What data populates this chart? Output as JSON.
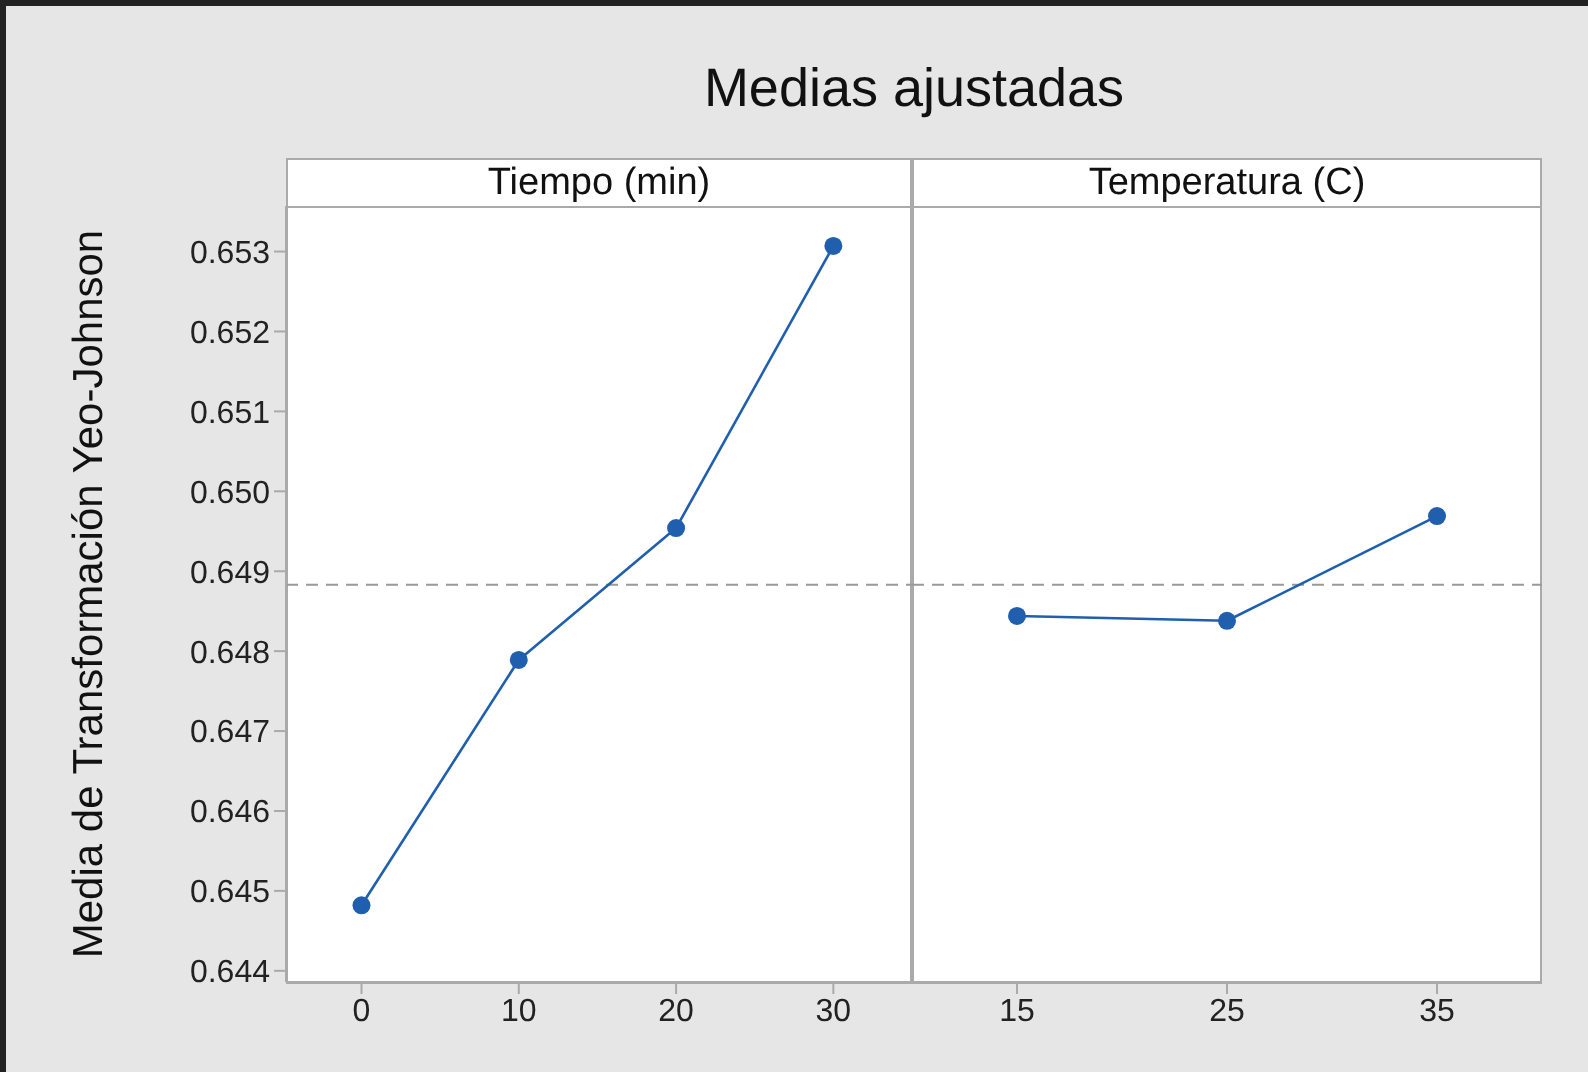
{
  "chart_data": [
    {
      "type": "line",
      "title": "Medias ajustadas",
      "subtitle": "Tiempo (min)",
      "ylabel": "Media de Transformación Yeo-Johnson",
      "x": [
        0,
        10,
        20,
        30
      ],
      "series": [
        {
          "color": "#1f5fae",
          "values": [
            0.64482,
            0.64789,
            0.64954,
            0.65307
          ]
        }
      ],
      "xlim": [
        -4.8,
        35
      ],
      "xticks": [
        0,
        10,
        20,
        30
      ],
      "ylim": [
        0.64386,
        0.65357
      ],
      "yticks": [
        {
          "value": 0.644,
          "label": "0.644"
        },
        {
          "value": 0.645,
          "label": "0.645"
        },
        {
          "value": 0.646,
          "label": "0.646"
        },
        {
          "value": 0.647,
          "label": "0.647"
        },
        {
          "value": 0.648,
          "label": "0.648"
        },
        {
          "value": 0.649,
          "label": "0.649"
        },
        {
          "value": 0.65,
          "label": "0.650"
        },
        {
          "value": 0.651,
          "label": "0.651"
        },
        {
          "value": 0.652,
          "label": "0.652"
        },
        {
          "value": 0.653,
          "label": "0.653"
        }
      ],
      "ref_lines": [
        {
          "axis": "y",
          "value": 0.64883,
          "color": "#999999",
          "line_style": "dashed"
        }
      ],
      "marker": "circle"
    },
    {
      "type": "line",
      "subtitle": "Temperatura (C)",
      "x": [
        15,
        25,
        35
      ],
      "series": [
        {
          "color": "#1f5fae",
          "values": [
            0.64844,
            0.64838,
            0.64969
          ]
        }
      ],
      "xlim": [
        10,
        40
      ],
      "xticks": [
        15,
        25,
        35
      ],
      "ylim": [
        0.64386,
        0.65357
      ],
      "ref_lines": [
        {
          "axis": "y",
          "value": 0.64883,
          "color": "#999999",
          "line_style": "dashed"
        }
      ],
      "marker": "circle",
      "tick_labels": "x"
    }
  ]
}
